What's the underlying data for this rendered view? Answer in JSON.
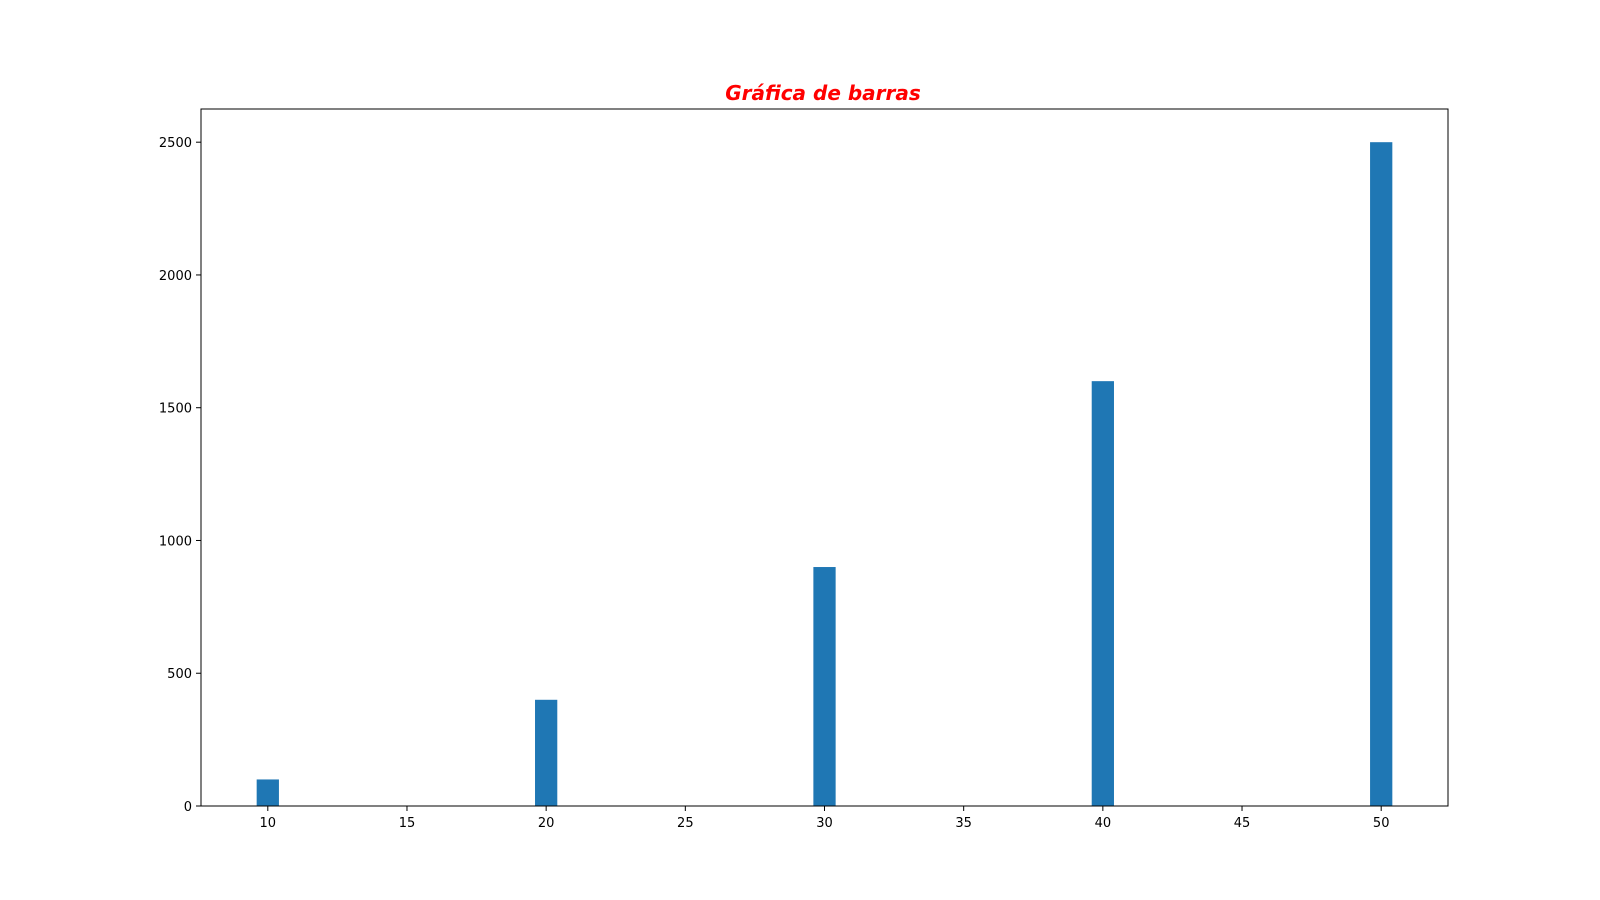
{
  "chart_data": {
    "type": "bar",
    "title": "Gráfica de barras",
    "title_color": "#ff0000",
    "bar_color": "#1f77b4",
    "xlabel": "",
    "ylabel": "",
    "x": [
      10,
      20,
      30,
      40,
      50
    ],
    "values": [
      100,
      400,
      900,
      1600,
      2500
    ],
    "bar_width": 0.8,
    "xlim": [
      7.6,
      52.4
    ],
    "ylim": [
      0,
      2625
    ],
    "xticks": [
      10,
      15,
      20,
      25,
      30,
      35,
      40,
      45,
      50
    ],
    "yticks": [
      0,
      500,
      1000,
      1500,
      2000,
      2500
    ],
    "grid": false
  }
}
